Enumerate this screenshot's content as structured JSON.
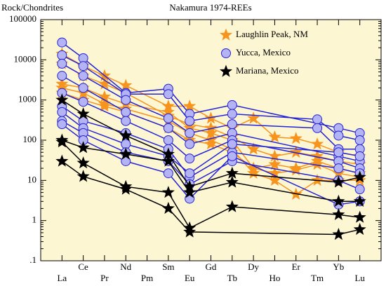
{
  "chart_data": {
    "type": "spider",
    "title": "Nakamura 1974-REEs",
    "y_label": "Rock/Chondrites",
    "log_y": true,
    "categories": [
      "La",
      "Ce",
      "Pr",
      "Nd",
      "Pm",
      "Sm",
      "Eu",
      "Gd",
      "Tb",
      "Dy",
      "Ho",
      "Er",
      "Tm",
      "Yb",
      "Lu"
    ],
    "ylim": [
      0.1,
      100000
    ],
    "yticks": [
      {
        "value": 0.1,
        "label": ".1"
      },
      1,
      10,
      100,
      1000,
      10000,
      100000
    ],
    "legend": "upper right",
    "series": [
      {
        "name": "Laughlin Peak, NM",
        "color": "#f7941d",
        "marker": "star",
        "samples": [
          {
            "x": [
              "La",
              "Ce",
              "Pr",
              "Nd",
              "Sm",
              "Eu",
              "Gd",
              "Tb",
              "Dy",
              "Ho",
              "Er",
              "Tm",
              "Yb",
              "Lu"
            ],
            "values": [
              14000,
              7000,
              4000,
              2300,
              700,
              700,
              350,
              200,
              350,
              120,
              110,
              80,
              50,
              40
            ]
          },
          {
            "x": [
              "La",
              "Ce",
              "Pr",
              "Nd",
              "Sm",
              "Eu",
              "Gd",
              "Tb",
              "Dy",
              "Ho",
              "Er",
              "Tm",
              "Yb",
              "Lu"
            ],
            "values": [
              8000,
              4000,
              2500,
              1500,
              400,
              250,
              200,
              120,
              60,
              40,
              50,
              40,
              30,
              25
            ]
          },
          {
            "x": [
              "La",
              "Ce",
              "Pr",
              "Nd",
              "Sm",
              "Eu",
              "Gd",
              "Tb",
              "Dy",
              "Ho",
              "Er",
              "Tm",
              "Yb",
              "Lu"
            ],
            "values": [
              2500,
              2000,
              1200,
              800,
              500,
              200,
              150,
              100,
              20,
              25,
              20,
              30,
              20,
              15
            ]
          },
          {
            "x": [
              "La",
              "Ce",
              "Pr",
              "Nd",
              "Sm",
              "Eu",
              "Gd",
              "Tb",
              "Dy",
              "Ho",
              "Er",
              "Tm",
              "Yb",
              "Lu"
            ],
            "values": [
              2000,
              1500,
              800,
              600,
              300,
              150,
              100,
              60,
              15,
              10,
              4.5,
              10,
              10,
              10
            ]
          },
          {
            "x": [
              "La",
              "Ce",
              "Pr",
              "Nd",
              "Sm",
              "Eu",
              "Gd",
              "Tb",
              "Dy",
              "Ho",
              "Er",
              "Tm",
              "Yb",
              "Lu"
            ],
            "values": [
              1500,
              1000,
              700,
              500,
              200,
              100,
              80,
              50,
              20,
              15,
              18,
              25,
              15,
              12
            ]
          }
        ]
      },
      {
        "name": "Yucca, Mexico",
        "color": "#2323d8",
        "fill": "#b4b4f4",
        "marker": "circle",
        "samples": [
          {
            "x": [
              "La",
              "Ce",
              "Nd",
              "Sm",
              "Eu",
              "Tb",
              "Yb",
              "Lu"
            ],
            "values": [
              27000,
              11000,
              1500,
              1900,
              450,
              750,
              200,
              150
            ]
          },
          {
            "x": [
              "La",
              "Ce",
              "Nd",
              "Sm",
              "Eu",
              "Tb",
              "Tm",
              "Yb",
              "Lu"
            ],
            "values": [
              13000,
              7000,
              1400,
              1400,
              300,
              450,
              330,
              130,
              100
            ]
          },
          {
            "x": [
              "La",
              "Ce",
              "Nd",
              "Sm",
              "Eu",
              "Tb",
              "Tm",
              "Yb",
              "Lu"
            ],
            "values": [
              8000,
              4000,
              1000,
              350,
              150,
              250,
              200,
              60,
              60
            ]
          },
          {
            "x": [
              "La",
              "Ce",
              "Nd",
              "Sm",
              "Eu",
              "Tb",
              "Yb",
              "Lu"
            ],
            "values": [
              4000,
              2000,
              500,
              200,
              80,
              150,
              40,
              30
            ]
          },
          {
            "x": [
              "La",
              "Ce",
              "Nd",
              "Sm",
              "Eu",
              "Tb",
              "Yb",
              "Lu"
            ],
            "values": [
              1500,
              900,
              300,
              100,
              35,
              100,
              30,
              20
            ]
          },
          {
            "x": [
              "La",
              "Ce",
              "Nd",
              "Sm",
              "Eu",
              "Tb",
              "Yb",
              "Lu"
            ],
            "values": [
              700,
              300,
              150,
              60,
              12,
              50,
              20,
              15
            ]
          },
          {
            "x": [
              "La",
              "Ce",
              "Nd",
              "Sm",
              "Eu",
              "Tb",
              "Yb",
              "Lu"
            ],
            "values": [
              500,
              200,
              80,
              40,
              15,
              80,
              50,
              40
            ]
          },
          {
            "x": [
              "La",
              "Ce",
              "Nd",
              "Sm",
              "Eu",
              "Tb",
              "Yb",
              "Lu"
            ],
            "values": [
              300,
              150,
              50,
              30,
              8,
              30,
              10,
              6
            ]
          },
          {
            "x": [
              "La",
              "Ce",
              "Nd",
              "Sm",
              "Eu",
              "Tb",
              "Yb",
              "Lu"
            ],
            "values": [
              250,
              100,
              30,
              15,
              3.5,
              40,
              2.5,
              3
            ]
          }
        ]
      },
      {
        "name": "Mariana, Mexico",
        "color": "#000000",
        "marker": "star",
        "samples": [
          {
            "x": [
              "La",
              "Ce",
              "Nd",
              "Sm",
              "Eu",
              "Tb",
              "Yb",
              "Lu"
            ],
            "values": [
              1000,
              450,
              130,
              45,
              7,
              15,
              9,
              12
            ]
          },
          {
            "x": [
              "La",
              "Ce",
              "Nd",
              "Sm",
              "Eu",
              "Tb",
              "Yb",
              "Lu"
            ],
            "values": [
              100,
              65,
              45,
              30,
              5,
              9,
              3,
              3
            ]
          },
          {
            "x": [
              "La",
              "Ce",
              "Nd",
              "Sm",
              "Eu",
              "Tb",
              "Yb",
              "Lu"
            ],
            "values": [
              90,
              27,
              7,
              5,
              0.65,
              2.2,
              1.4,
              1.2
            ]
          },
          {
            "x": [
              "La",
              "Ce",
              "Nd",
              "Sm",
              "Eu",
              "Yb",
              "Lu"
            ],
            "values": [
              30,
              12.5,
              6,
              2,
              0.52,
              0.45,
              0.6
            ]
          }
        ]
      }
    ]
  }
}
